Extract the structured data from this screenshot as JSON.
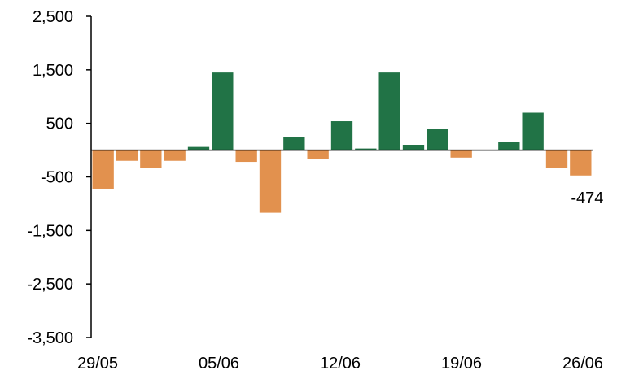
{
  "chart_data": {
    "type": "bar",
    "title": "",
    "xlabel": "",
    "ylabel": "",
    "x_tick_labels": [
      "29/05",
      "05/06",
      "12/06",
      "19/06",
      "26/06"
    ],
    "y_tick_labels": [
      "2,500",
      "1,500",
      "500",
      "-500",
      "-1,500",
      "-2,500",
      "-3,500"
    ],
    "y_ticks": [
      2500,
      1500,
      500,
      -500,
      -1500,
      -2500,
      -3500
    ],
    "ylim": [
      -3500,
      2500
    ],
    "values": [
      -720,
      -200,
      -330,
      -200,
      60,
      1450,
      -220,
      -1170,
      240,
      -170,
      540,
      30,
      1450,
      100,
      390,
      -140,
      0,
      150,
      700,
      -330,
      -474
    ],
    "data_labels": [
      {
        "index": 20,
        "text": "-474"
      }
    ],
    "colors": {
      "positive": "#217346",
      "negative": "#E2914E",
      "axis": "#000000"
    },
    "grid": false,
    "legend": "none"
  }
}
